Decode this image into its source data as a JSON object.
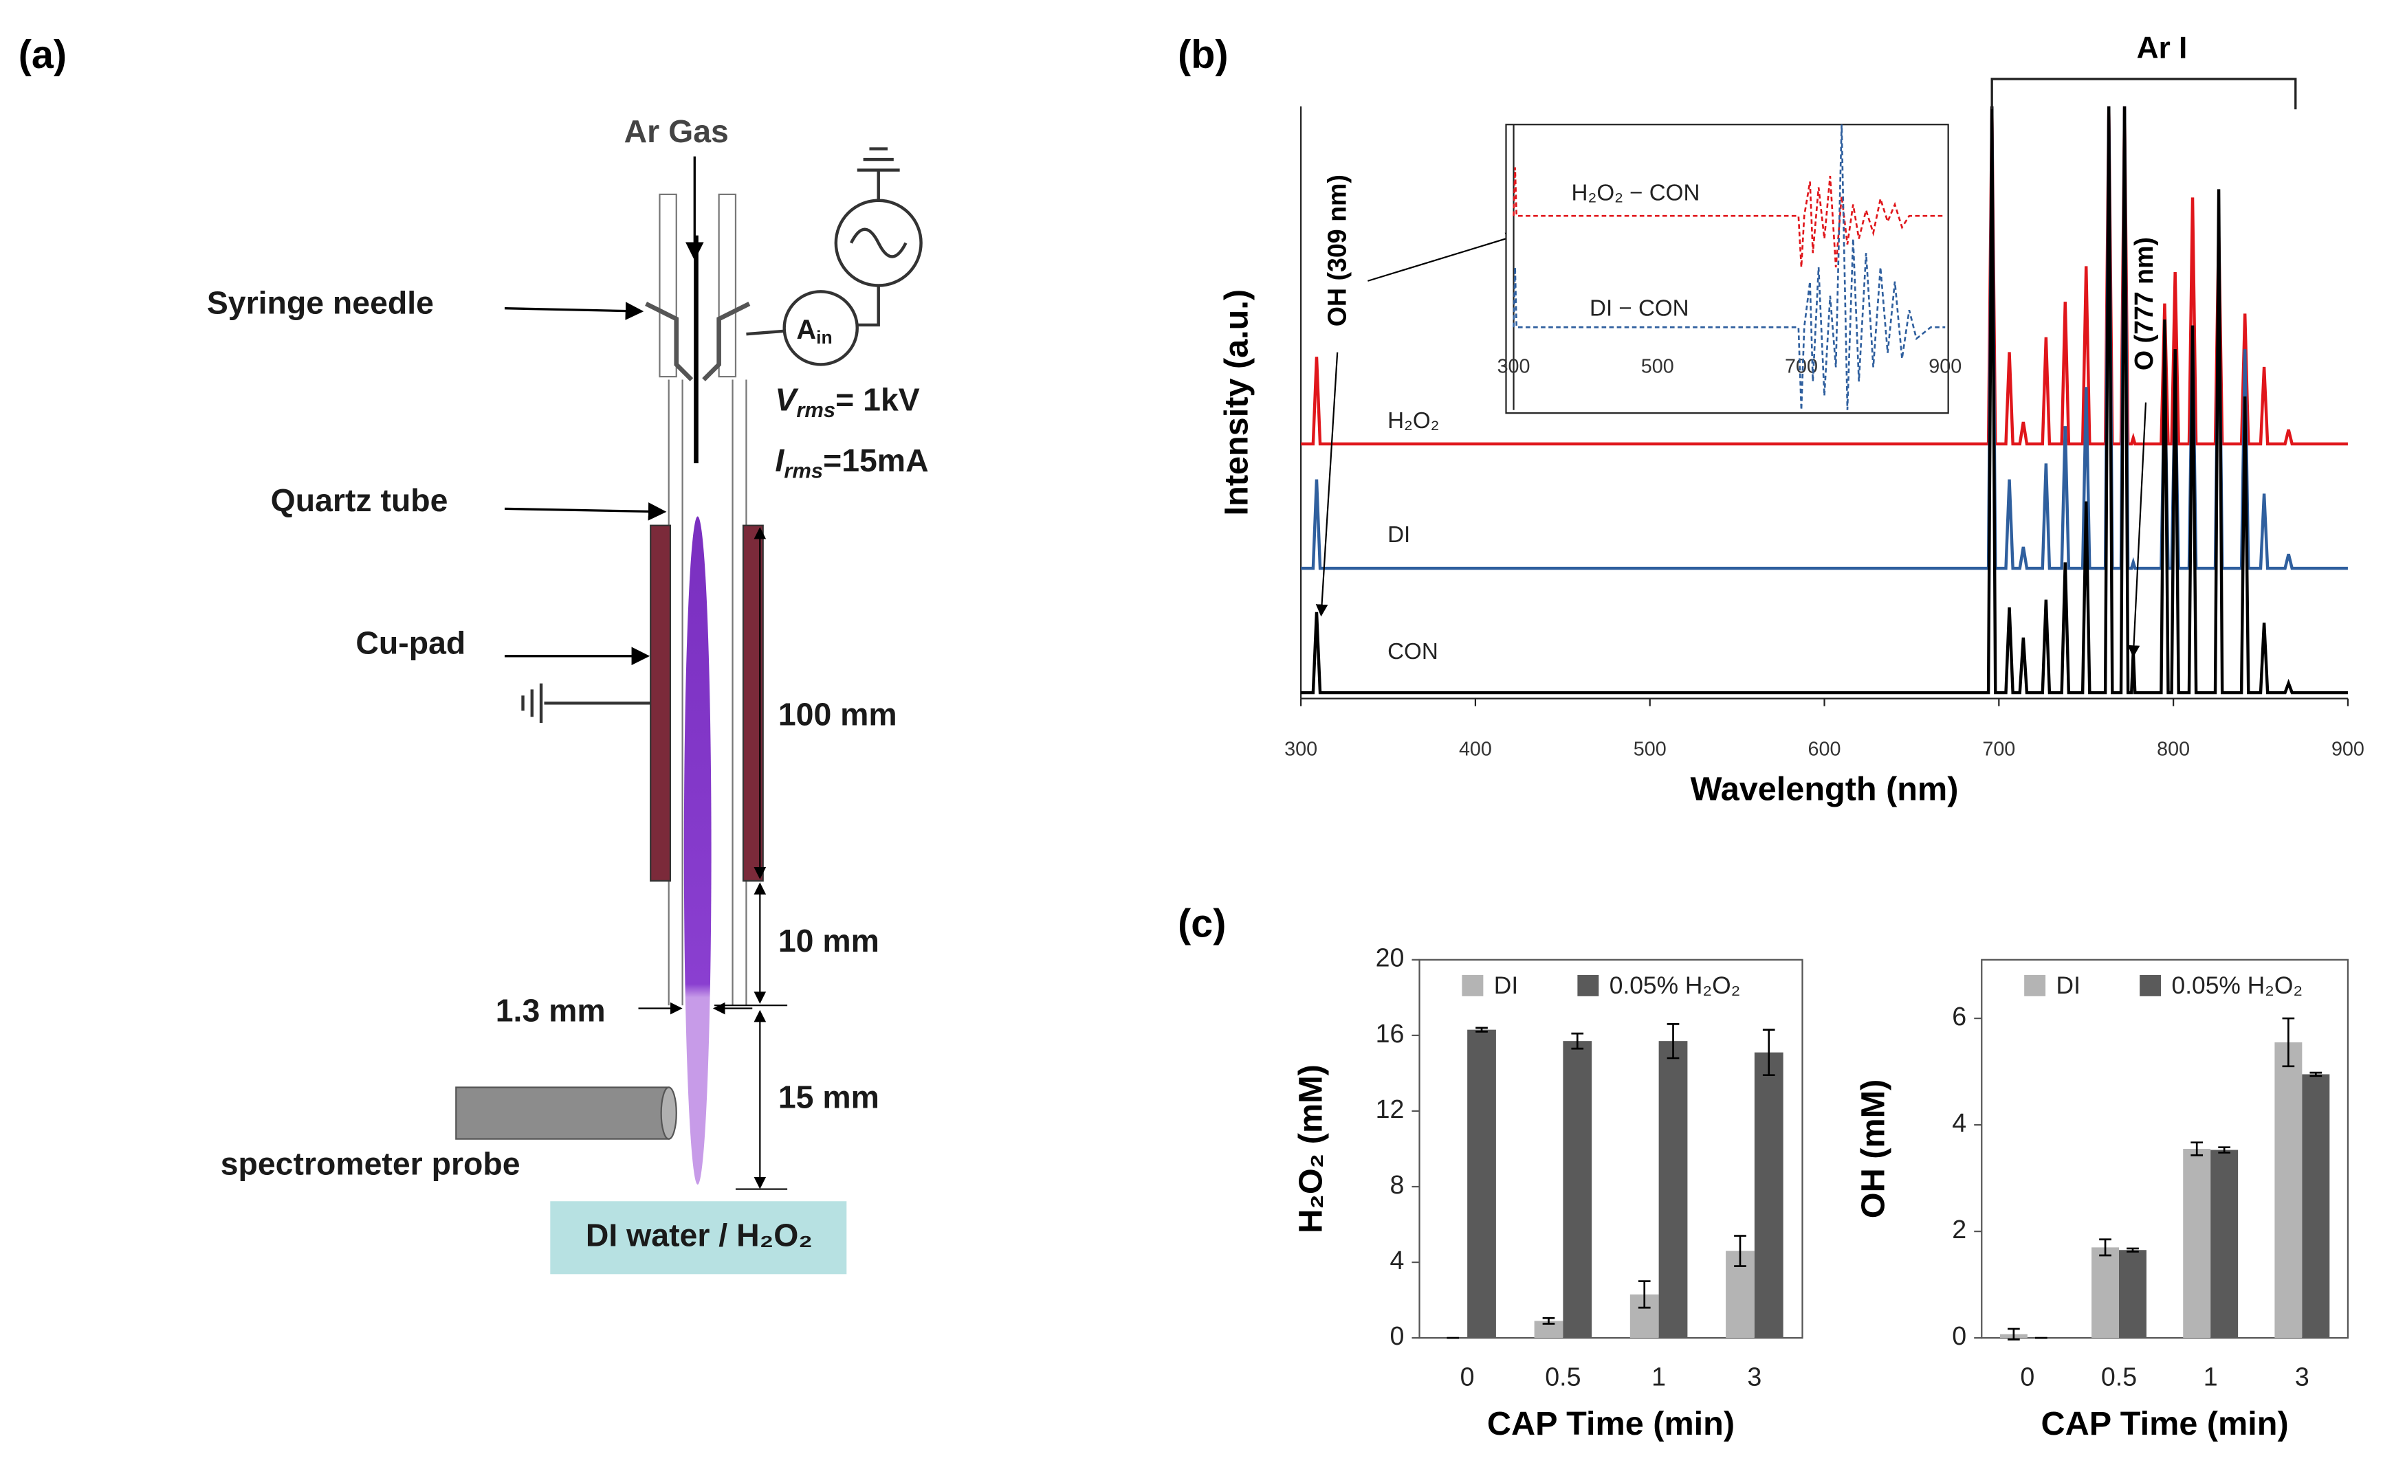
{
  "panel_labels": [
    "(a)",
    "(b)",
    "(c)"
  ],
  "diagram": {
    "gas": "Ar Gas",
    "syringe": "Syringe needle",
    "quartz": "Quartz tube",
    "cu_pad": "Cu-pad",
    "ammeter": {
      "symbol": "A",
      "subscript": "in"
    },
    "voltage": {
      "symbol": "V",
      "subscript": "rms",
      "text": "= 1kV"
    },
    "current": {
      "symbol": "I",
      "subscript": "rms",
      "text": "=15mA"
    },
    "dim_pad": "100 mm",
    "dim_gap": "10 mm",
    "dim_inner": "1.3 mm",
    "dim_probe": "15 mm",
    "probe": "spectrometer probe",
    "target": "DI water / H₂O₂"
  },
  "chart_data": [
    {
      "type": "line",
      "x_label": "Wavelength (nm)",
      "y_label": "Intensity (a.u.)",
      "annotations": {
        "band": "Ar I",
        "oh": "OH (309 nm)",
        "o": "O (777 nm)"
      },
      "xlim": [
        300,
        900
      ],
      "xticks": [
        300,
        400,
        500,
        600,
        700,
        800,
        900
      ],
      "ylim": [
        0,
        100
      ],
      "x": [
        300,
        307,
        309,
        311,
        694,
        696,
        698,
        704,
        706,
        708,
        712,
        714,
        716,
        725,
        727,
        729,
        736,
        738,
        740,
        748,
        750,
        752,
        761,
        763,
        765,
        770,
        772,
        774,
        776,
        777,
        778,
        793,
        795,
        797,
        799,
        801,
        803,
        809,
        811,
        813,
        824,
        826,
        828,
        839,
        841,
        843,
        850,
        852,
        854,
        864,
        866,
        868,
        900
      ],
      "series": [
        {
          "name": "H₂O₂",
          "color": "#e0161b",
          "values": [
            43,
            43,
            57.7,
            43,
            43,
            100,
            43,
            43,
            58.5,
            43,
            43,
            46.7,
            43,
            43,
            61,
            43,
            43,
            67,
            43,
            43,
            73,
            43,
            43,
            100,
            43,
            43,
            100,
            43,
            43,
            44,
            43,
            43,
            66.7,
            43,
            43,
            72,
            43,
            43,
            84.6,
            43,
            43,
            79.5,
            43,
            43,
            65,
            43,
            43,
            56,
            43,
            43,
            45.4,
            43,
            43
          ]
        },
        {
          "name": "DI",
          "color": "#2f5f9e",
          "values": [
            22,
            22,
            37,
            22,
            22,
            100,
            22,
            22,
            37,
            22,
            22,
            25.6,
            22,
            22,
            39.7,
            22,
            22,
            46,
            22,
            22,
            52.6,
            22,
            22,
            100,
            22,
            22,
            100,
            22,
            22,
            23,
            22,
            22,
            55,
            22,
            22,
            54,
            22,
            22,
            63,
            22,
            22,
            74,
            22,
            22,
            59,
            22,
            22,
            34.6,
            22,
            22,
            24.4,
            22,
            22
          ]
        },
        {
          "name": "CON",
          "color": "#000000",
          "values": [
            1,
            1,
            14.6,
            1,
            1,
            100,
            1,
            1,
            15.4,
            1,
            1,
            10.3,
            1,
            1,
            16.7,
            1,
            1,
            23,
            1,
            1,
            33.3,
            1,
            1,
            100,
            1,
            1,
            100,
            1,
            1,
            8,
            1,
            1,
            64,
            1,
            1,
            59,
            1,
            1,
            63,
            1,
            1,
            86,
            1,
            1,
            51,
            1,
            1,
            12.8,
            1,
            1,
            2.6,
            1,
            1
          ]
        }
      ]
    },
    {
      "type": "line",
      "dashed": true,
      "xlim": [
        300,
        900
      ],
      "xticks": [
        300,
        500,
        700,
        900
      ],
      "ylim": [
        0,
        100
      ],
      "x": [
        300,
        302,
        304,
        696,
        700,
        704,
        712,
        716,
        724,
        732,
        740,
        748,
        756,
        764,
        772,
        780,
        790,
        800,
        810,
        820,
        830,
        840,
        850,
        860,
        880,
        900,
        900
      ],
      "series": [
        {
          "name": "H₂O₂ − CON",
          "color": "#e0161b",
          "values": [
            68,
            85,
            68,
            68,
            50,
            68,
            80,
            55,
            78,
            60,
            82,
            50,
            75,
            58,
            72,
            60,
            70,
            62,
            74,
            66,
            72,
            64,
            68,
            68,
            68,
            68,
            68
          ]
        },
        {
          "name": "DI − CON",
          "color": "#2f5f9e",
          "values": [
            29,
            50,
            29,
            29,
            0,
            29,
            45,
            10,
            50,
            5,
            40,
            15,
            100,
            0,
            60,
            10,
            55,
            15,
            50,
            20,
            45,
            18,
            35,
            25,
            29,
            29,
            29
          ]
        }
      ]
    },
    {
      "type": "bar",
      "y_label": "H₂O₂ (mM)",
      "x_label": "CAP Time (min)",
      "categories": [
        "0",
        "0.5",
        "1",
        "3"
      ],
      "ylim": [
        0,
        20
      ],
      "yticks": [
        0,
        4,
        8,
        12,
        16,
        20
      ],
      "series": [
        {
          "name": "DI",
          "color": "#b4b4b4",
          "values": [
            0,
            0.9,
            2.3,
            4.6
          ],
          "errors": [
            0,
            0.15,
            0.7,
            0.8
          ]
        },
        {
          "name": "0.05% H₂O₂",
          "color": "#5a5a5a",
          "values": [
            16.3,
            15.7,
            15.7,
            15.1
          ],
          "errors": [
            0.1,
            0.4,
            0.9,
            1.2
          ]
        }
      ]
    },
    {
      "type": "bar",
      "y_label": "OH (mM)",
      "x_label": "CAP Time (min)",
      "categories": [
        "0",
        "0.5",
        "1",
        "3"
      ],
      "ylim": [
        0,
        7.1
      ],
      "yticks": [
        0,
        2,
        4,
        6
      ],
      "series": [
        {
          "name": "DI",
          "color": "#b4b4b4",
          "values": [
            0.07,
            1.7,
            3.55,
            5.55
          ],
          "errors": [
            0.1,
            0.15,
            0.12,
            0.45
          ]
        },
        {
          "name": "0.05% H₂O₂",
          "color": "#5a5a5a",
          "values": [
            0,
            1.65,
            3.53,
            4.95
          ],
          "errors": [
            0,
            0.03,
            0.05,
            0.03
          ]
        }
      ]
    }
  ]
}
